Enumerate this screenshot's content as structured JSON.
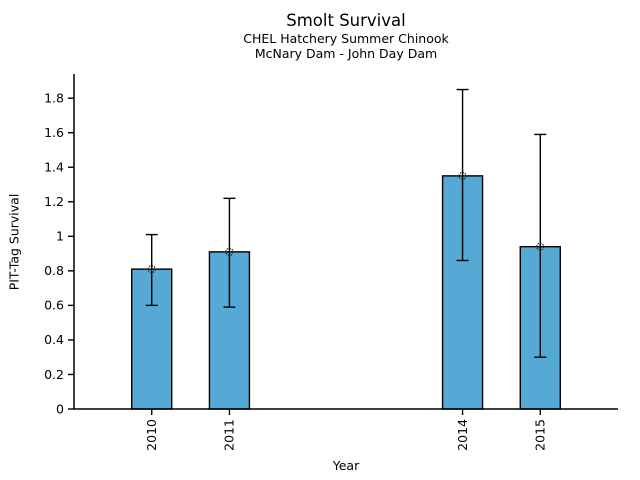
{
  "chart_data": {
    "type": "bar",
    "title": "Smolt Survival",
    "subtitle1": "CHEL Hatchery Summer Chinook",
    "subtitle2": "McNary Dam - John Day Dam",
    "xlabel": "Year",
    "ylabel": "PIT-Tag Survival",
    "categories": [
      2010,
      2011,
      2014,
      2015
    ],
    "x_tick_labels": [
      "2010",
      "2011",
      "2014",
      "2015"
    ],
    "values": [
      0.81,
      0.91,
      1.35,
      0.94
    ],
    "error_low": [
      0.6,
      0.59,
      0.86,
      0.3
    ],
    "error_high": [
      1.01,
      1.22,
      1.85,
      1.59
    ],
    "xlim": [
      2009,
      2016
    ],
    "ylim": [
      0,
      1.94
    ],
    "y_ticks": [
      0,
      0.2,
      0.4,
      0.6,
      0.8,
      1,
      1.2,
      1.4,
      1.6,
      1.8
    ],
    "y_tick_labels": [
      "0",
      "0.2",
      "0.4",
      "0.6",
      "0.8",
      "1",
      "1.2",
      "1.4",
      "1.6",
      "1.8"
    ],
    "grid": false,
    "legend": "none",
    "colors": {
      "bar_fill": "#56A9D4",
      "bar_border": "#000000",
      "error_bar": "#000000",
      "marker_stroke": "#222222",
      "axis": "#000000",
      "text": "#000000"
    }
  }
}
